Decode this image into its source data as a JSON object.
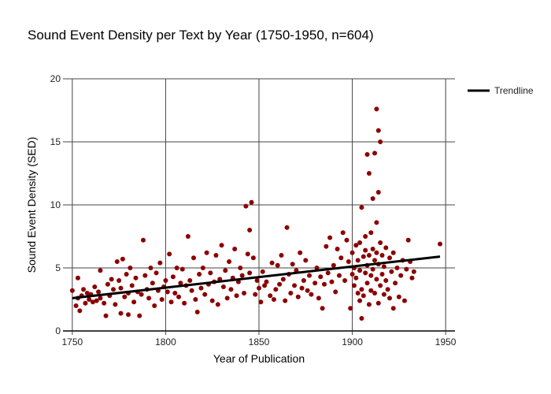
{
  "chart_data": {
    "type": "scatter",
    "title": "Sound Event Density per Text by Year (1750-1950, n=604)",
    "xlabel": "Year of Publication",
    "ylabel": "Sound Event Density (SED)",
    "xlim": [
      1745,
      1955
    ],
    "ylim": [
      0,
      20
    ],
    "x_ticks": [
      1750,
      1800,
      1850,
      1900,
      1950
    ],
    "y_ticks": [
      0,
      5,
      10,
      15,
      20
    ],
    "grid": true,
    "legend_position": "top-right",
    "series": [
      {
        "kind": "points",
        "color": "#8B0000",
        "points": [
          [
            1750,
            3.2
          ],
          [
            1752,
            2.0
          ],
          [
            1753,
            4.2
          ],
          [
            1753,
            2.6
          ],
          [
            1754,
            1.6
          ],
          [
            1755,
            2.8
          ],
          [
            1756,
            3.3
          ],
          [
            1757,
            2.2
          ],
          [
            1758,
            3.0
          ],
          [
            1759,
            2.5
          ],
          [
            1760,
            2.9
          ],
          [
            1761,
            2.3
          ],
          [
            1762,
            3.5
          ],
          [
            1763,
            2.4
          ],
          [
            1764,
            3.1
          ],
          [
            1765,
            4.8
          ],
          [
            1765,
            2.6
          ],
          [
            1767,
            2.2
          ],
          [
            1768,
            1.2
          ],
          [
            1769,
            3.7
          ],
          [
            1770,
            2.8
          ],
          [
            1771,
            4.1
          ],
          [
            1772,
            3.3
          ],
          [
            1773,
            2.1
          ],
          [
            1774,
            5.5
          ],
          [
            1775,
            4.0
          ],
          [
            1776,
            3.4
          ],
          [
            1776,
            1.4
          ],
          [
            1777,
            5.7
          ],
          [
            1778,
            2.7
          ],
          [
            1779,
            4.5
          ],
          [
            1780,
            3.0
          ],
          [
            1780,
            1.3
          ],
          [
            1781,
            5.0
          ],
          [
            1782,
            3.6
          ],
          [
            1783,
            2.3
          ],
          [
            1784,
            4.2
          ],
          [
            1785,
            3.1
          ],
          [
            1786,
            1.2
          ],
          [
            1787,
            2.9
          ],
          [
            1788,
            7.2
          ],
          [
            1789,
            4.4
          ],
          [
            1790,
            3.3
          ],
          [
            1791,
            2.6
          ],
          [
            1792,
            5.0
          ],
          [
            1793,
            3.8
          ],
          [
            1794,
            2.0
          ],
          [
            1795,
            4.6
          ],
          [
            1796,
            3.2
          ],
          [
            1797,
            5.4
          ],
          [
            1798,
            2.5
          ],
          [
            1799,
            3.5
          ],
          [
            1800,
            4.0
          ],
          [
            1801,
            3.1
          ],
          [
            1802,
            6.1
          ],
          [
            1803,
            2.3
          ],
          [
            1804,
            4.3
          ],
          [
            1805,
            3.0
          ],
          [
            1806,
            5.0
          ],
          [
            1807,
            2.7
          ],
          [
            1808,
            3.8
          ],
          [
            1809,
            4.9
          ],
          [
            1810,
            2.2
          ],
          [
            1811,
            3.6
          ],
          [
            1812,
            7.5
          ],
          [
            1813,
            4.0
          ],
          [
            1814,
            3.2
          ],
          [
            1815,
            5.8
          ],
          [
            1816,
            2.5
          ],
          [
            1817,
            1.5
          ],
          [
            1818,
            4.5
          ],
          [
            1819,
            3.4
          ],
          [
            1820,
            5.0
          ],
          [
            1821,
            2.9
          ],
          [
            1822,
            6.2
          ],
          [
            1823,
            3.7
          ],
          [
            1824,
            4.6
          ],
          [
            1825,
            2.4
          ],
          [
            1826,
            3.9
          ],
          [
            1827,
            6.0
          ],
          [
            1828,
            2.1
          ],
          [
            1829,
            4.1
          ],
          [
            1830,
            6.8
          ],
          [
            1831,
            3.5
          ],
          [
            1832,
            4.8
          ],
          [
            1833,
            2.6
          ],
          [
            1834,
            5.5
          ],
          [
            1835,
            3.3
          ],
          [
            1836,
            4.2
          ],
          [
            1837,
            6.5
          ],
          [
            1838,
            2.8
          ],
          [
            1839,
            3.9
          ],
          [
            1840,
            5.0
          ],
          [
            1841,
            4.4
          ],
          [
            1842,
            3.0
          ],
          [
            1843,
            9.9
          ],
          [
            1844,
            6.1
          ],
          [
            1845,
            8.0
          ],
          [
            1845,
            4.6
          ],
          [
            1846,
            10.2
          ],
          [
            1847,
            5.8
          ],
          [
            1848,
            2.9
          ],
          [
            1849,
            4.0
          ],
          [
            1850,
            3.4
          ],
          [
            1851,
            2.3
          ],
          [
            1852,
            4.7
          ],
          [
            1853,
            3.6
          ],
          [
            1854,
            3.9
          ],
          [
            1856,
            2.8
          ],
          [
            1857,
            5.4
          ],
          [
            1858,
            2.5
          ],
          [
            1859,
            3.3
          ],
          [
            1860,
            5.2
          ],
          [
            1861,
            3.7
          ],
          [
            1862,
            6.0
          ],
          [
            1863,
            4.1
          ],
          [
            1864,
            2.4
          ],
          [
            1865,
            8.2
          ],
          [
            1866,
            4.5
          ],
          [
            1867,
            3.0
          ],
          [
            1868,
            5.3
          ],
          [
            1869,
            3.6
          ],
          [
            1870,
            4.8
          ],
          [
            1871,
            2.7
          ],
          [
            1872,
            6.2
          ],
          [
            1873,
            3.4
          ],
          [
            1874,
            4.0
          ],
          [
            1875,
            5.6
          ],
          [
            1876,
            3.2
          ],
          [
            1877,
            4.4
          ],
          [
            1878,
            2.9
          ],
          [
            1880,
            3.8
          ],
          [
            1881,
            5.0
          ],
          [
            1882,
            2.6
          ],
          [
            1883,
            4.3
          ],
          [
            1884,
            1.8
          ],
          [
            1885,
            3.7
          ],
          [
            1886,
            6.7
          ],
          [
            1887,
            4.6
          ],
          [
            1888,
            7.4
          ],
          [
            1889,
            3.9
          ],
          [
            1890,
            5.2
          ],
          [
            1891,
            3.1
          ],
          [
            1892,
            6.5
          ],
          [
            1893,
            4.4
          ],
          [
            1894,
            5.8
          ],
          [
            1895,
            7.8
          ],
          [
            1896,
            4.0
          ],
          [
            1897,
            7.2
          ],
          [
            1898,
            5.5
          ],
          [
            1899,
            1.8
          ],
          [
            1900,
            4.5
          ],
          [
            1900,
            6.2
          ],
          [
            1901,
            3.6
          ],
          [
            1901,
            5.0
          ],
          [
            1902,
            4.2
          ],
          [
            1902,
            6.8
          ],
          [
            1903,
            3.0
          ],
          [
            1903,
            5.6
          ],
          [
            1904,
            2.4
          ],
          [
            1904,
            7.0
          ],
          [
            1904,
            4.8
          ],
          [
            1905,
            9.8
          ],
          [
            1905,
            3.3
          ],
          [
            1905,
            1.0
          ],
          [
            1906,
            5.9
          ],
          [
            1906,
            2.8
          ],
          [
            1907,
            7.5
          ],
          [
            1907,
            4.6
          ],
          [
            1907,
            6.4
          ],
          [
            1908,
            5.2
          ],
          [
            1908,
            3.8
          ],
          [
            1908,
            14.0
          ],
          [
            1909,
            6.0
          ],
          [
            1909,
            2.1
          ],
          [
            1909,
            12.5
          ],
          [
            1910,
            4.4
          ],
          [
            1910,
            7.8
          ],
          [
            1910,
            3.2
          ],
          [
            1911,
            6.5
          ],
          [
            1911,
            10.5
          ],
          [
            1911,
            4.9
          ],
          [
            1912,
            5.6
          ],
          [
            1912,
            3.0
          ],
          [
            1912,
            14.1
          ],
          [
            1913,
            6.2
          ],
          [
            1913,
            8.6
          ],
          [
            1913,
            4.1
          ],
          [
            1913,
            17.6
          ],
          [
            1914,
            15.9
          ],
          [
            1914,
            11.0
          ],
          [
            1914,
            5.3
          ],
          [
            1914,
            2.2
          ],
          [
            1915,
            15.0
          ],
          [
            1915,
            7.0
          ],
          [
            1915,
            3.6
          ],
          [
            1916,
            6.0
          ],
          [
            1916,
            4.5
          ],
          [
            1917,
            5.1
          ],
          [
            1917,
            2.9
          ],
          [
            1918,
            6.6
          ],
          [
            1918,
            4.0
          ],
          [
            1919,
            3.3
          ],
          [
            1920,
            5.8
          ],
          [
            1920,
            2.6
          ],
          [
            1921,
            4.7
          ],
          [
            1922,
            1.8
          ],
          [
            1922,
            6.2
          ],
          [
            1923,
            3.8
          ],
          [
            1924,
            5.0
          ],
          [
            1925,
            2.7
          ],
          [
            1926,
            4.4
          ],
          [
            1927,
            5.6
          ],
          [
            1928,
            2.4
          ],
          [
            1929,
            4.9
          ],
          [
            1930,
            7.2
          ],
          [
            1931,
            5.5
          ],
          [
            1932,
            4.2
          ],
          [
            1933,
            4.7
          ],
          [
            1947,
            6.9
          ]
        ]
      },
      {
        "kind": "trendline",
        "name": "Trendline",
        "color": "#000000",
        "x": [
          1750,
          1947
        ],
        "y": [
          2.6,
          5.9
        ]
      }
    ]
  }
}
